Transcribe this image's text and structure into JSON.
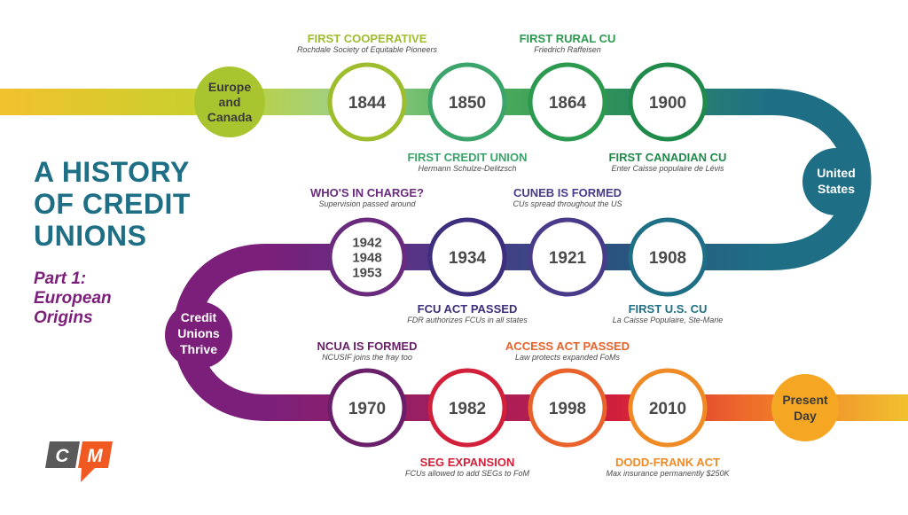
{
  "title_lines": [
    "A HISTORY",
    "OF CREDIT",
    "UNIONS"
  ],
  "subtitle_lines": [
    "Part 1:",
    "European",
    "Origins"
  ],
  "hubs": {
    "europe": [
      "Europe",
      "and",
      "Canada"
    ],
    "us": [
      "United",
      "States"
    ],
    "thrive": [
      "Credit",
      "Unions",
      "Thrive"
    ],
    "present": [
      "Present",
      "Day"
    ]
  },
  "milestones": [
    {
      "id": "m1844",
      "lines": [
        "1844"
      ],
      "heading": "FIRST COOPERATIVE",
      "sub": "Rochdale Society of Equitable Pioneers",
      "color": "#9dbd2d"
    },
    {
      "id": "m1850",
      "lines": [
        "1850"
      ],
      "heading": "FIRST CREDIT UNION",
      "sub": "Hermann Schulze-Delitzsch",
      "color": "#3aa46a"
    },
    {
      "id": "m1864",
      "lines": [
        "1864"
      ],
      "heading": "FIRST RURAL CU",
      "sub": "Friedrich Raffeisen",
      "color": "#2b9a4f"
    },
    {
      "id": "m1900",
      "lines": [
        "1900"
      ],
      "heading": "FIRST CANADIAN CU",
      "sub": "Enter Caisse populaire de Lévis",
      "color": "#1f8a4a"
    },
    {
      "id": "m1908",
      "lines": [
        "1908"
      ],
      "heading": "FIRST U.S. CU",
      "sub": "La Caisse Populaire, Ste-Marie",
      "color": "#1e6f86"
    },
    {
      "id": "m1921",
      "lines": [
        "1921"
      ],
      "heading": "CUNEB IS FORMED",
      "sub": "CUs spread throughout the US",
      "color": "#4a3b8a"
    },
    {
      "id": "m1934",
      "lines": [
        "1934"
      ],
      "heading": "FCU ACT PASSED",
      "sub": "FDR authorizes FCUs in all states",
      "color": "#3e2e7e"
    },
    {
      "id": "m1942",
      "lines": [
        "1942",
        "1948",
        "1953"
      ],
      "heading": "WHO'S IN CHARGE?",
      "sub": "Supervision passed around",
      "color": "#6a2a7e"
    },
    {
      "id": "m1970",
      "lines": [
        "1970"
      ],
      "heading": "NCUA IS FORMED",
      "sub": "NCUSIF joins the fray too",
      "color": "#6a1f6a"
    },
    {
      "id": "m1982",
      "lines": [
        "1982"
      ],
      "heading": "SEG EXPANSION",
      "sub": "FCUs allowed to add SEGs to FoM",
      "color": "#d21f3a"
    },
    {
      "id": "m1998",
      "lines": [
        "1998"
      ],
      "heading": "ACCESS ACT PASSED",
      "sub": "Law protects expanded FoMs",
      "color": "#e8622a"
    },
    {
      "id": "m2010",
      "lines": [
        "2010"
      ],
      "heading": "DODD-FRANK ACT",
      "sub": "Max insurance permanently $250K",
      "color": "#f08a24"
    }
  ],
  "logo": {
    "left": "C",
    "right": "M"
  },
  "colors": {
    "title": "#1e6f86",
    "subtitle": "#7b1f7a",
    "year_text": "#4a4a4a",
    "hub_europe": "#a8c52f",
    "hub_us": "#1e6f86",
    "hub_thrive": "#7b1f7a",
    "hub_present": "#f5a623",
    "logo_dark": "#5a5a5a",
    "logo_orange": "#f05a22"
  }
}
